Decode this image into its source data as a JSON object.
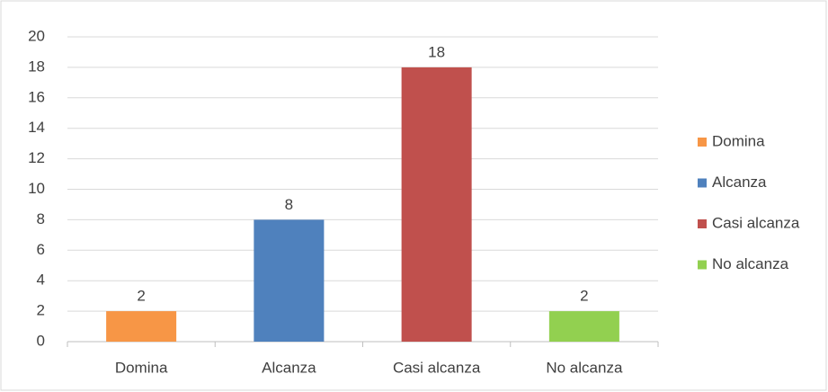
{
  "chart_data": {
    "type": "bar",
    "categories": [
      "Domina",
      "Alcanza",
      "Casi alcanza",
      "No alcanza"
    ],
    "values": [
      2,
      8,
      18,
      2
    ],
    "colors": [
      "#f79646",
      "#4f81bd",
      "#c0504d",
      "#92d050"
    ],
    "ylim": [
      0,
      20
    ],
    "yticks": [
      0,
      2,
      4,
      6,
      8,
      10,
      12,
      14,
      16,
      18,
      20
    ],
    "grid": true,
    "legend": "right",
    "data_labels": true
  }
}
